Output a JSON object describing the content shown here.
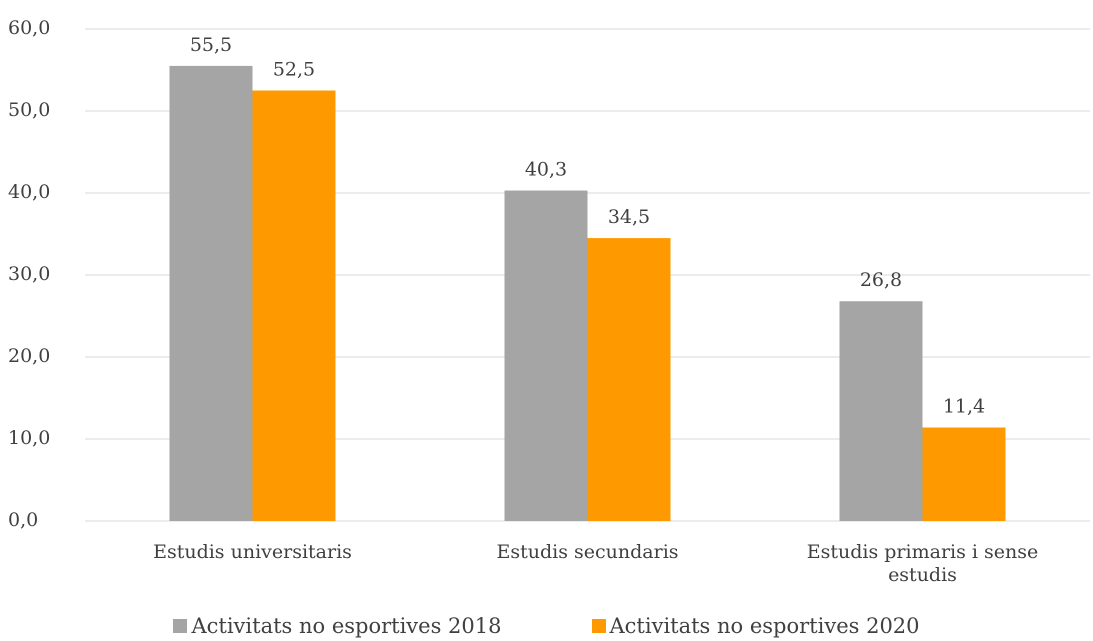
{
  "chart_data": {
    "type": "bar",
    "categories": [
      "Estudis universitaris",
      "Estudis secundaris",
      "Estudis primaris i sense estudis"
    ],
    "series": [
      {
        "name": "Activitats no esportives 2018",
        "color": "#a5a5a5",
        "values": [
          55.5,
          40.3,
          26.8
        ],
        "value_labels": [
          "55,5",
          "40,3",
          "26,8"
        ]
      },
      {
        "name": "Activitats no esportives 2020",
        "color": "#ff9900",
        "values": [
          52.5,
          34.5,
          11.4
        ],
        "value_labels": [
          "52,5",
          "34,5",
          "11,4"
        ]
      }
    ],
    "ylim": [
      0,
      60
    ],
    "yticks": [
      {
        "value": 0,
        "label": "0,0"
      },
      {
        "value": 10,
        "label": "10,0"
      },
      {
        "value": 20,
        "label": "20,0"
      },
      {
        "value": 30,
        "label": "30,0"
      },
      {
        "value": 40,
        "label": "40,0"
      },
      {
        "value": 50,
        "label": "50,0"
      },
      {
        "value": 60,
        "label": "60,0"
      }
    ],
    "grid": true
  }
}
